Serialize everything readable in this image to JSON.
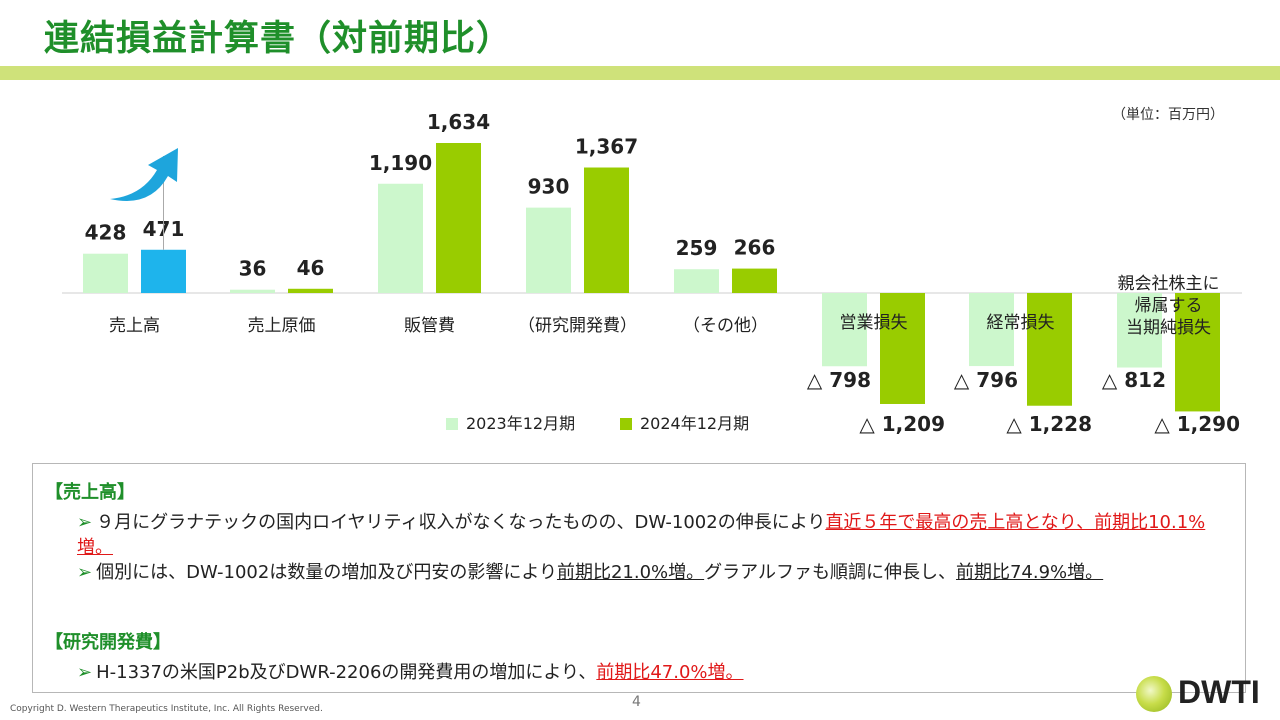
{
  "title": "連結損益計算書（対前期比）",
  "unit_label": "（単位：百万円）",
  "chart_data": {
    "type": "bar",
    "categories": [
      "売上高",
      "売上原価",
      "販管費",
      "（研究開発費）",
      "（その他）",
      "営業損失",
      "経常損失",
      "親会社株主に帰属する当期純損失"
    ],
    "category_lines": [
      [
        "売上高"
      ],
      [
        "売上原価"
      ],
      [
        "販管費"
      ],
      [
        "（研究開発費）"
      ],
      [
        "（その他）"
      ],
      [
        "営業損失"
      ],
      [
        "経常損失"
      ],
      [
        "親会社株主に",
        "帰属する",
        "当期純損失"
      ]
    ],
    "series": [
      {
        "name": "2023年12月期",
        "values": [
          428,
          36,
          1190,
          930,
          259,
          -798,
          -796,
          -812
        ],
        "labels": [
          "428",
          "36",
          "1,190",
          "930",
          "259",
          "△ 798",
          "△ 796",
          "△ 812"
        ],
        "color": "#ccf7cc"
      },
      {
        "name": "2024年12月期",
        "values": [
          471,
          46,
          1634,
          1367,
          266,
          -1209,
          -1228,
          -1290
        ],
        "labels": [
          "471",
          "46",
          "1,634",
          "1,367",
          "266",
          "△ 1,209",
          "△ 1,228",
          "△ 1,290"
        ],
        "color": "#99cc00"
      }
    ],
    "highlight": {
      "category_index": 0,
      "series_index": 1,
      "color": "#1eb4ec",
      "arrow_color": "#1ea5dc"
    },
    "ylim": [
      -1290,
      1634
    ],
    "legend_position": "bottom"
  },
  "sections": [
    {
      "heading": "【売上高】",
      "bullets": [
        {
          "segments": [
            {
              "text": "９月にグラナテックの国内ロイヤリティ収入がなくなったものの、DW-1002の伸長により",
              "style": "plain"
            },
            {
              "text": "直近５年で最高の売上高となり、前期比10.1%増。",
              "style": "red"
            }
          ]
        },
        {
          "segments": [
            {
              "text": "個別には、DW-1002は数量の増加及び円安の影響により",
              "style": "plain"
            },
            {
              "text": "前期比21.0%増。",
              "style": "underline"
            },
            {
              "text": "グラアルファも順調に伸長し、",
              "style": "plain"
            },
            {
              "text": "前期比74.9%増。",
              "style": "underline"
            }
          ]
        }
      ]
    },
    {
      "heading": "【研究開発費】",
      "bullets": [
        {
          "segments": [
            {
              "text": "H-1337の米国P2b及びDWR-2206の開発費用の増加により、",
              "style": "plain"
            },
            {
              "text": "前期比47.0%増。",
              "style": "red"
            }
          ]
        }
      ]
    }
  ],
  "bullet_marker": "➢",
  "page_number": "4",
  "copyright": "Copyright D. Western Therapeutics Institute, Inc. All Rights Reserved.",
  "logo_text": "DWTI"
}
